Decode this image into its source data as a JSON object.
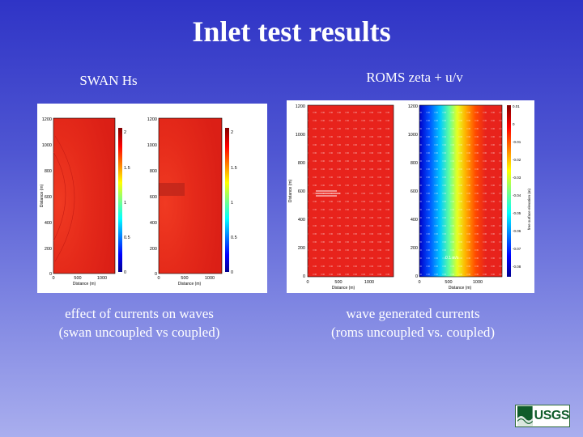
{
  "slide": {
    "title": "Inlet test results",
    "left_panel": {
      "heading": "SWAN Hs",
      "caption_line1": "effect of currents on waves",
      "caption_line2": "(swan uncoupled vs coupled)"
    },
    "right_panel": {
      "heading": "ROMS zeta + u/v",
      "caption_line1": "wave generated currents",
      "caption_line2": "(roms uncoupled vs. coupled)"
    },
    "logo_text": "USGS"
  },
  "colors": {
    "background_top": "#2f34c6",
    "background_bottom": "#a9aeee",
    "field_red": "#e8231c",
    "logo_green": "#0f5c2a"
  },
  "icons": [
    "usgs-logo-icon",
    "colorbar-jet"
  ],
  "figures": {
    "swan": {
      "ylabel": "Distance (m)",
      "xlabel": "Distance (m)",
      "yticks": [
        "1200",
        "1000",
        "800",
        "600",
        "400",
        "200",
        "0"
      ],
      "xticks": [
        "0",
        "500",
        "1000"
      ],
      "colorbar_ticks": [
        "2",
        "1.5",
        "1",
        "0.5",
        "0"
      ]
    },
    "roms": {
      "ylabel": "Distance (m)",
      "xlabel": "Distance (m)",
      "yticks": [
        "1200",
        "1000",
        "800",
        "600",
        "400",
        "200",
        "0"
      ],
      "xticks": [
        "0",
        "500",
        "1000"
      ],
      "colorbar_label": "free surface elevation (m)",
      "colorbar_ticks": [
        "0.01",
        "0",
        "-0.01",
        "-0.02",
        "-0.03",
        "-0.04",
        "-0.05",
        "-0.06",
        "-0.07",
        "-0.08"
      ],
      "vector_scale_label": "0.1 m/s"
    }
  }
}
